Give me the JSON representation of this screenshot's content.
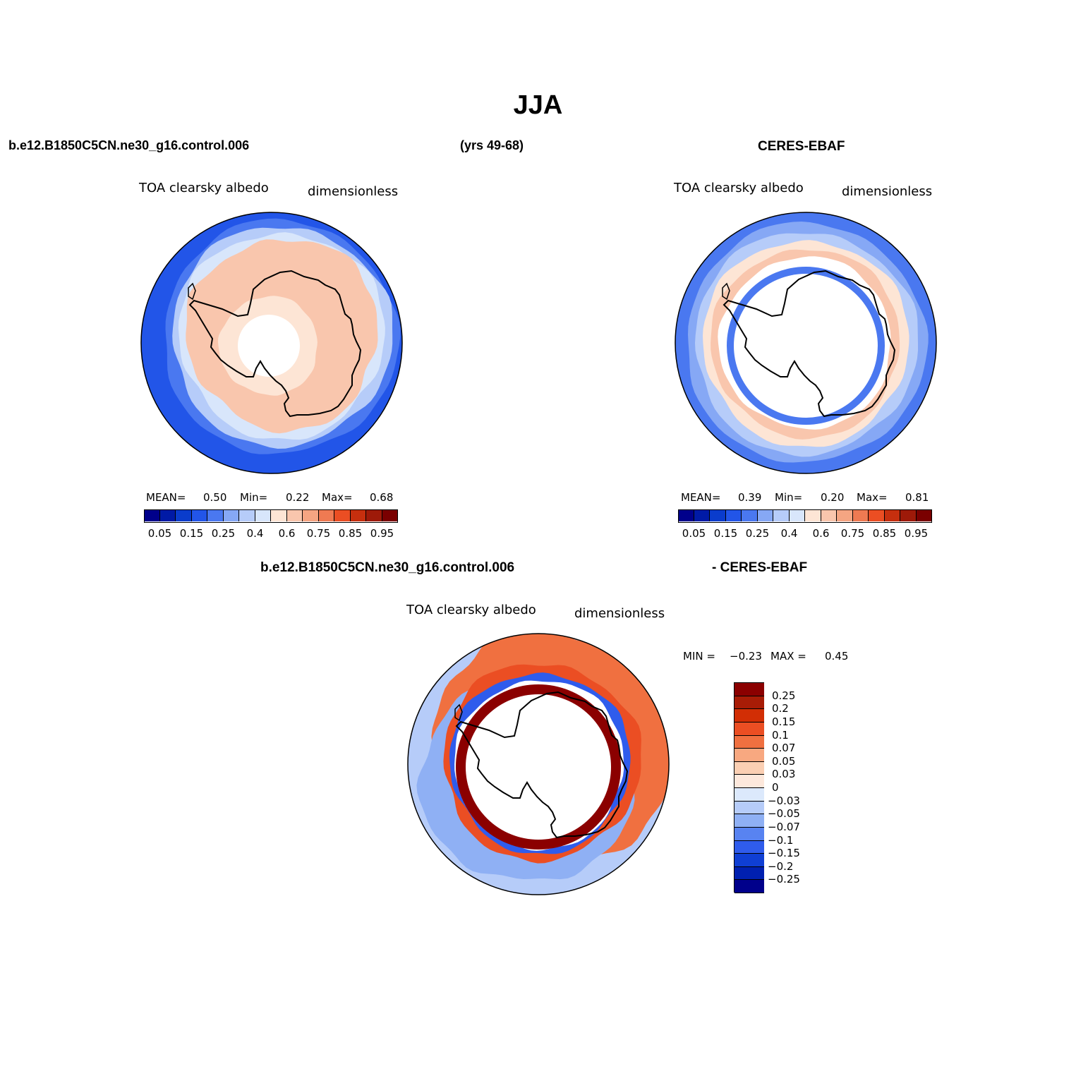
{
  "title": "JJA",
  "header": {
    "model_case": "b.e12.B1850C5CN.ne30_g16.control.006",
    "years": "(yrs 49-68)",
    "obs_name": "CERES-EBAF"
  },
  "diff_header": {
    "model_case": "b.e12.B1850C5CN.ne30_g16.control.006",
    "obs_name": "- CERES-EBAF"
  },
  "panels": [
    {
      "variable": "TOA clearsky albedo",
      "units": "dimensionless",
      "stats": {
        "mean_label": "MEAN=",
        "mean": "0.50",
        "min_label": "Min=",
        "min": "0.22",
        "max_label": "Max=",
        "max": "0.68"
      },
      "colorbar_labels": [
        "0.05",
        "0.15",
        "0.25",
        "0.4",
        "0.6",
        "0.75",
        "0.85",
        "0.95"
      ]
    },
    {
      "variable": "TOA clearsky albedo",
      "units": "dimensionless",
      "stats": {
        "mean_label": "MEAN=",
        "mean": "0.39",
        "min_label": "Min=",
        "min": "0.20",
        "max_label": "Max=",
        "max": "0.81"
      },
      "colorbar_labels": [
        "0.05",
        "0.15",
        "0.25",
        "0.4",
        "0.6",
        "0.75",
        "0.85",
        "0.95"
      ]
    },
    {
      "variable": "TOA clearsky albedo",
      "units": "dimensionless",
      "stats": {
        "min_label": "MIN =",
        "min": "−0.23",
        "max_label": "MAX =",
        "max": "0.45"
      },
      "colorbar_labels": [
        "0.25",
        "0.2",
        "0.15",
        "0.1",
        "0.07",
        "0.05",
        "0.03",
        "0",
        "−0.03",
        "−0.05",
        "−0.07",
        "−0.1",
        "−0.15",
        "−0.2",
        "−0.25"
      ]
    }
  ],
  "colors": {
    "field_scale": [
      "#00008b",
      "#001aa6",
      "#0a3ccc",
      "#2255e8",
      "#4a78f0",
      "#86a8f5",
      "#b6ccf9",
      "#d8e6fb",
      "#fde5d5",
      "#f9c6ad",
      "#f5a582",
      "#ef7a52",
      "#eb4e23",
      "#c62f0e",
      "#9e1a09",
      "#7a0000"
    ],
    "diff_scale": [
      "#8b0000",
      "#a81c06",
      "#d22e05",
      "#eb4e23",
      "#f07040",
      "#f8a880",
      "#fbcfb3",
      "#fde8dc",
      "#dce9fc",
      "#b6ccf9",
      "#8fb0f4",
      "#5883f1",
      "#2f5cec",
      "#0f3fd4",
      "#0020b0",
      "#00008b"
    ],
    "land": "#ffffff",
    "coast": "#000000"
  }
}
